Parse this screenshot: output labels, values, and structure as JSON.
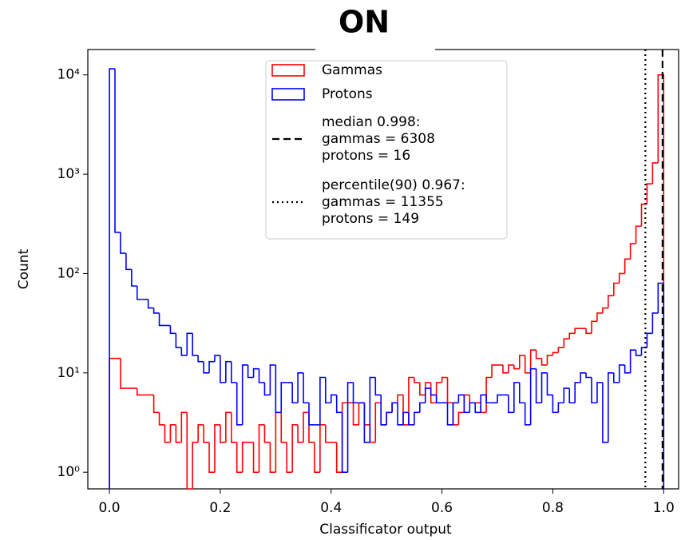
{
  "chart_data": {
    "type": "histogram",
    "title": "ON",
    "xlabel": "Classificator output",
    "ylabel": "Count",
    "bins": [
      0,
      0.01,
      0.02,
      0.03,
      0.04,
      0.05,
      0.06,
      0.07,
      0.08,
      0.09,
      0.1,
      0.11,
      0.12,
      0.13,
      0.14,
      0.15,
      0.16,
      0.17,
      0.18,
      0.19,
      0.2,
      0.21,
      0.22,
      0.23,
      0.24,
      0.25,
      0.26,
      0.27,
      0.28,
      0.29,
      0.3,
      0.31,
      0.32,
      0.33,
      0.34,
      0.35,
      0.36,
      0.37,
      0.38,
      0.39,
      0.4,
      0.41,
      0.42,
      0.43,
      0.44,
      0.45,
      0.46,
      0.47,
      0.48,
      0.49,
      0.5,
      0.51,
      0.52,
      0.53,
      0.54,
      0.55,
      0.56,
      0.57,
      0.58,
      0.59,
      0.6,
      0.61,
      0.62,
      0.63,
      0.64,
      0.65,
      0.66,
      0.67,
      0.68,
      0.69,
      0.7,
      0.71,
      0.72,
      0.73,
      0.74,
      0.75,
      0.76,
      0.77,
      0.78,
      0.79,
      0.8,
      0.81,
      0.82,
      0.83,
      0.84,
      0.85,
      0.86,
      0.87,
      0.88,
      0.89,
      0.9,
      0.91,
      0.92,
      0.93,
      0.94,
      0.95,
      0.96,
      0.97,
      0.98,
      0.99,
      1
    ],
    "series": [
      {
        "name": "Gammas",
        "color": "#ff0000",
        "values": [
          14,
          14,
          7,
          7,
          7,
          6,
          6,
          6,
          4,
          3,
          2,
          3,
          2,
          4,
          0,
          2,
          3,
          2,
          1,
          3,
          2,
          4,
          2,
          1,
          2,
          2,
          1,
          3,
          2,
          1,
          4,
          2,
          1,
          3,
          2,
          4,
          2,
          1,
          3,
          2,
          2,
          1,
          5,
          5,
          3,
          5,
          3,
          2,
          5,
          3,
          4,
          5,
          6,
          3,
          9,
          8,
          6,
          8,
          5,
          8,
          9,
          5,
          3,
          4,
          6,
          5,
          5,
          4,
          9,
          12,
          12,
          10,
          12,
          11,
          15,
          10,
          17,
          14,
          12,
          15,
          16,
          18,
          22,
          25,
          28,
          28,
          25,
          33,
          40,
          45,
          60,
          80,
          100,
          140,
          200,
          300,
          500,
          800,
          1300,
          10000
        ]
      },
      {
        "name": "Protons",
        "color": "#0000ff",
        "values": [
          11500,
          260,
          160,
          110,
          75,
          55,
          55,
          45,
          40,
          30,
          30,
          25,
          18,
          15,
          25,
          15,
          13,
          10,
          13,
          15,
          8,
          13,
          8,
          3,
          12,
          9,
          11,
          8,
          6,
          12,
          4,
          8,
          8,
          5,
          10,
          5,
          3,
          3,
          9,
          5,
          6,
          4,
          1,
          8,
          5,
          5,
          2,
          9,
          6,
          3,
          4,
          5,
          3,
          4,
          3,
          4,
          5,
          7,
          6,
          5,
          5,
          3,
          5,
          6,
          4,
          5,
          4,
          6,
          5,
          5,
          6,
          6,
          4,
          8,
          5,
          3,
          11,
          5,
          10,
          6,
          4,
          5,
          7,
          5,
          8,
          10,
          9,
          5,
          8,
          2,
          10,
          8,
          12,
          10,
          17,
          15,
          18,
          25,
          40,
          80
        ]
      }
    ],
    "vlines": [
      {
        "x": 0.998,
        "style": "dashed",
        "color": "#000000",
        "label": [
          "median 0.998:",
          "gammas = 6308",
          "protons = 16"
        ]
      },
      {
        "x": 0.967,
        "style": "dotted",
        "color": "#000000",
        "label": [
          "percentile(90) 0.967:",
          "gammas = 11355",
          "protons = 149"
        ]
      }
    ],
    "xlim": [
      -0.039,
      1.027
    ],
    "xticks": [
      {
        "value": 0,
        "label": "0.0"
      },
      0.2,
      0.4,
      0.6,
      0.8,
      {
        "value": 1,
        "label": "1.0"
      }
    ],
    "ylim": [
      0.68,
      18000
    ],
    "yscale": "log",
    "yticks": [
      {
        "value": 1,
        "label": "10⁰"
      },
      {
        "value": 10,
        "label": "10¹"
      },
      {
        "value": 100,
        "label": "10²"
      },
      {
        "value": 1000,
        "label": "10³"
      },
      {
        "value": 10000,
        "label": "10⁴"
      }
    ],
    "legend": "upper center"
  }
}
